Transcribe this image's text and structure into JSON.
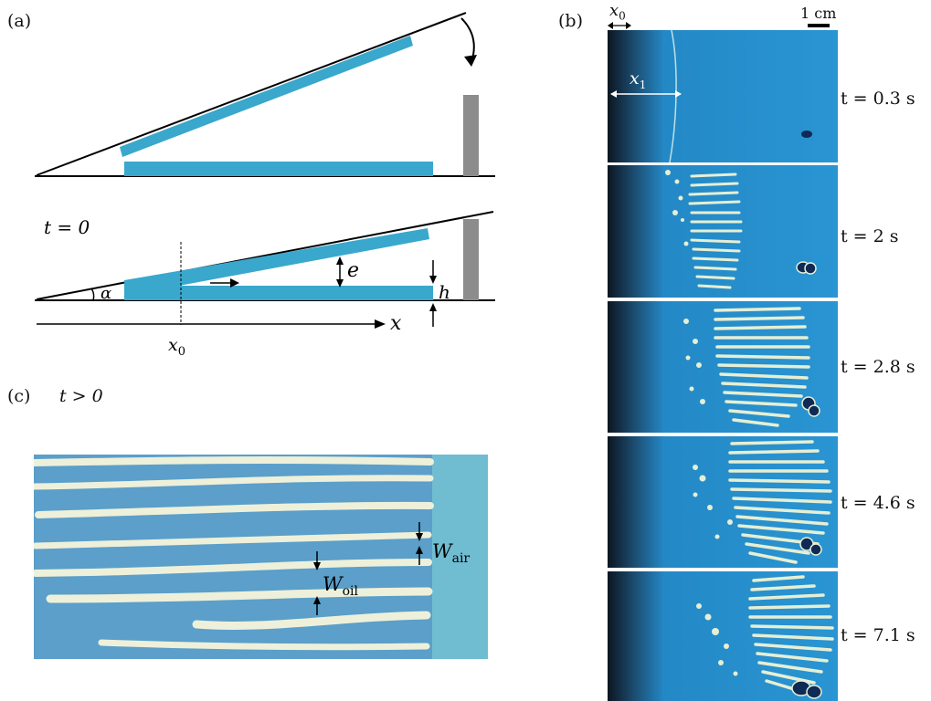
{
  "panels": {
    "a": "(a)",
    "b": "(b)",
    "c": "(c)"
  },
  "schematic": {
    "t0_label": "t = 0",
    "alpha": "α",
    "e": "e",
    "h": "h",
    "x": "x",
    "x0": "x",
    "x0_sub": "0"
  },
  "experiment": {
    "x0": "x",
    "x0_sub": "0",
    "x1": "x",
    "x1_sub": "1",
    "scale_bar": "1 cm",
    "frames": [
      {
        "time": "t = 0.3 s"
      },
      {
        "time": "t = 2 s"
      },
      {
        "time": "t = 2.8 s"
      },
      {
        "time": "t = 4.6 s"
      },
      {
        "time": "t = 7.1 s"
      }
    ]
  },
  "closeup": {
    "t_label": "t > 0",
    "w_air": "W",
    "w_air_sub": "air",
    "w_oil": "W",
    "w_oil_sub": "oil"
  },
  "colors": {
    "plate": "#3aa7cc",
    "wall": "#8c8c8c",
    "fluid": "#2b8fcf",
    "finger": "#e9efd2"
  }
}
